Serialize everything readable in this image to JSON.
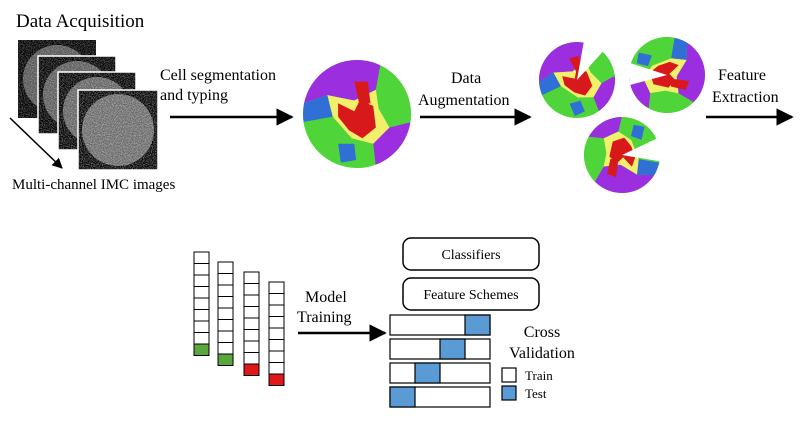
{
  "colors": {
    "cell_red": "#d7191c",
    "cell_green": "#4fd53a",
    "cell_purple": "#9b2fe0",
    "cell_yellow": "#f2f06a",
    "cell_blue": "#2f6fd6",
    "marker_green": "#5aa83b",
    "marker_red": "#e01818",
    "test_blue": "#5b9bd5",
    "arrow": "#000000"
  },
  "icons": {
    "imc_stack": "stacked-grayscale-image-icon",
    "tissue": "segmented-tissue-disc-icon",
    "augmented": "rotated-tissue-disc-with-cut-icon"
  },
  "stage1": {
    "title": "Data Acquisition",
    "caption": "Multi-channel IMC images"
  },
  "step1": {
    "line1": "Cell segmentation",
    "line2": "and typing"
  },
  "step2": {
    "line1": "Data",
    "line2": "Augmentation"
  },
  "step3": {
    "line1": "Feature",
    "line2": "Extraction"
  },
  "step4": {
    "line1": "Model",
    "line2": "Training"
  },
  "training": {
    "classifiers": "Classifiers",
    "feature_schemes": "Feature Schemes",
    "cv_line1": "Cross",
    "cv_line2": "Validation",
    "legend_train": "Train",
    "legend_test": "Test",
    "folds_total": 4
  }
}
